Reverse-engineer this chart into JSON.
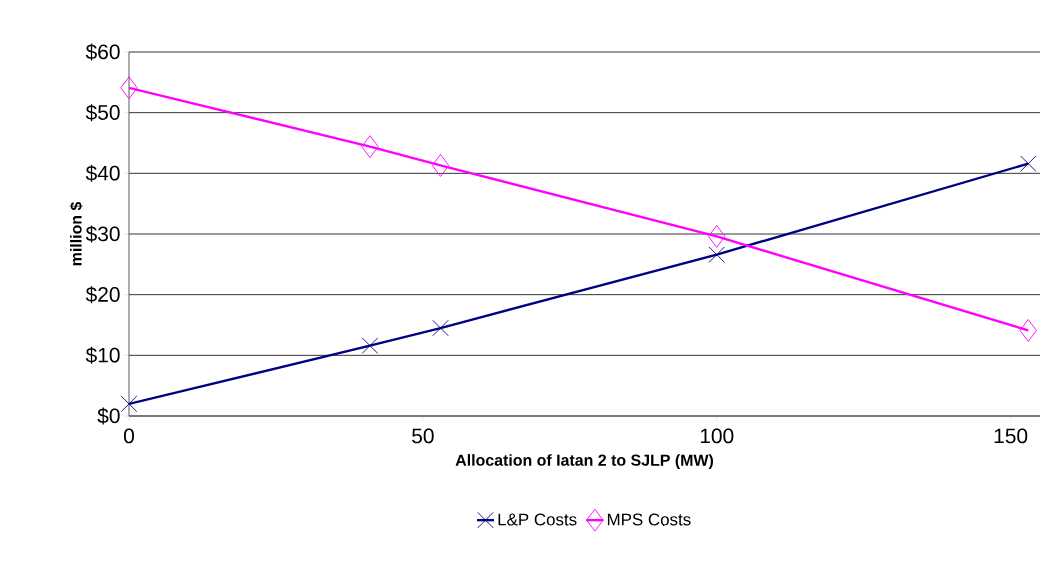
{
  "chart_data": {
    "type": "line",
    "xlabel": "Allocation of Iatan 2 to SJLP (MW)",
    "ylabel": "million $",
    "x": [
      0,
      41,
      53,
      100,
      153
    ],
    "series": [
      {
        "name": "L&P Costs",
        "color": "#000080",
        "marker": "cross",
        "values": [
          2.0,
          11.6,
          14.5,
          26.6,
          41.6
        ]
      },
      {
        "name": "MPS Costs",
        "color": "#ff00ff",
        "marker": "diamond",
        "values": [
          54.1,
          44.4,
          41.3,
          29.6,
          14.1
        ]
      }
    ],
    "xlim": [
      0,
      155
    ],
    "xticks": [
      0,
      50,
      100,
      150
    ],
    "ylim": [
      0,
      60
    ],
    "yticks": [
      {
        "value": 0,
        "label": "$0"
      },
      {
        "value": 10,
        "label": "$10"
      },
      {
        "value": 20,
        "label": "$20"
      },
      {
        "value": 30,
        "label": "$30"
      },
      {
        "value": 40,
        "label": "$40"
      },
      {
        "value": 50,
        "label": "$50"
      },
      {
        "value": 60,
        "label": "$60"
      }
    ],
    "grid": "y",
    "legend": "bottom",
    "line_style": "solid"
  }
}
